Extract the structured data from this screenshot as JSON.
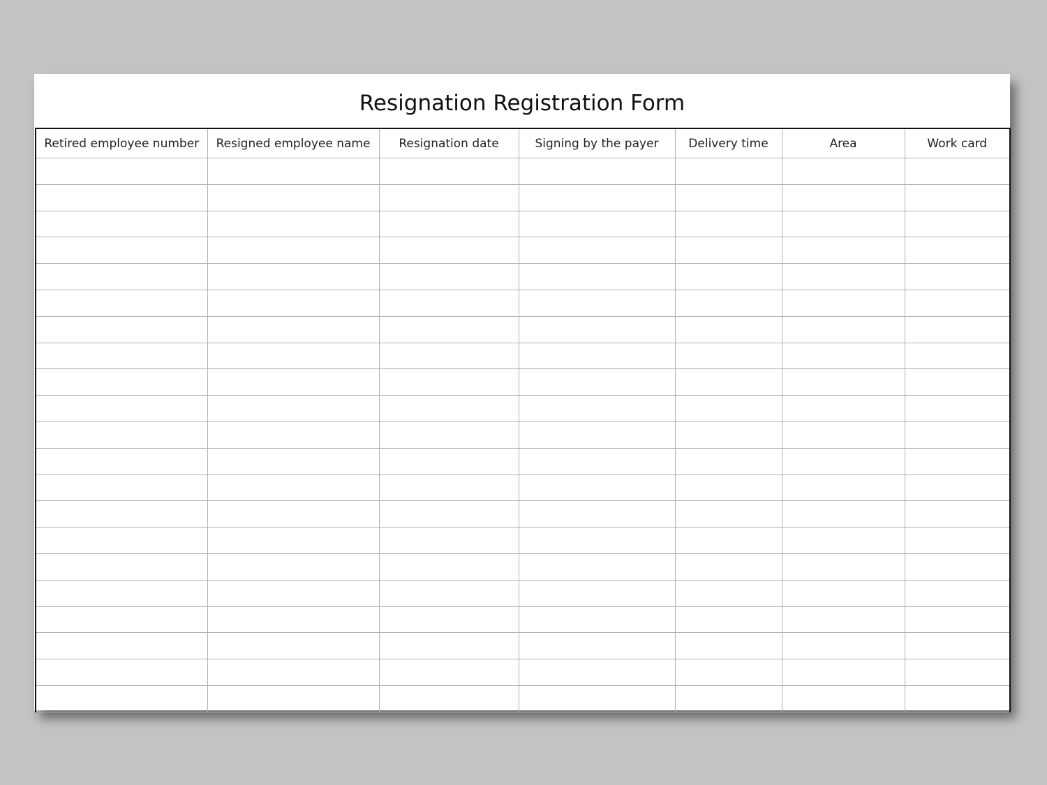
{
  "form": {
    "title": "Resignation Registration Form",
    "columns": [
      "Retired employee number",
      "Resigned employee name",
      "Resignation date",
      "Signing by the payer",
      "Delivery time",
      "Area",
      "Work card"
    ],
    "empty_rows": 21
  }
}
